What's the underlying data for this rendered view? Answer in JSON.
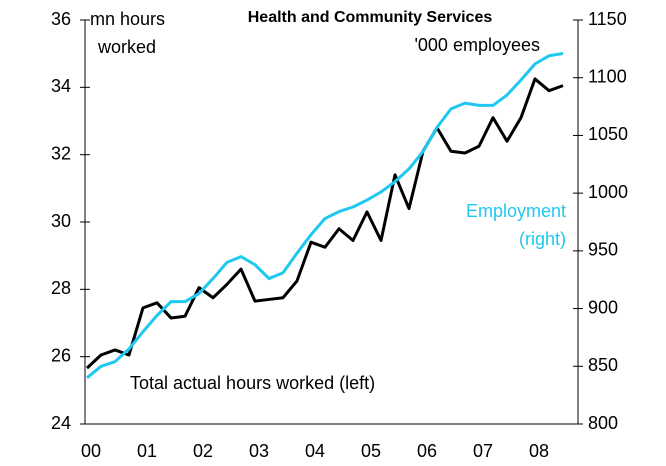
{
  "chart_data": {
    "type": "line",
    "title": "Health and Community Services",
    "y_label": [
      "mn hours",
      "worked"
    ],
    "y2_label": "'000 employees",
    "annotations": [
      [
        "Employment",
        "(right)"
      ],
      [
        "Total actual hours worked (left)"
      ]
    ],
    "categories": [
      "00",
      null,
      null,
      null,
      "01",
      null,
      null,
      null,
      "02",
      null,
      null,
      null,
      "03",
      null,
      null,
      null,
      "04",
      null,
      null,
      null,
      "05",
      null,
      null,
      null,
      "06",
      null,
      null,
      null,
      "07",
      null,
      null,
      null,
      "08",
      null,
      null
    ],
    "series": [
      {
        "name": "Total actual hours worked (left)",
        "color": "#000000",
        "axis": "y",
        "values": [
          25.66,
          26.05,
          26.2,
          26.05,
          27.45,
          27.6,
          27.15,
          27.2,
          28.05,
          27.75,
          28.15,
          28.6,
          27.65,
          27.7,
          27.75,
          28.25,
          29.4,
          29.25,
          29.8,
          29.45,
          30.3,
          29.45,
          31.4,
          30.4,
          32.1,
          32.8,
          32.1,
          32.05,
          32.25,
          33.1,
          32.4,
          33.1,
          34.25,
          33.9,
          34.05
        ]
      },
      {
        "name": "Employment (right)",
        "color": "#1fc8f0",
        "axis": "y2",
        "values": [
          840,
          850,
          854,
          865,
          880,
          894,
          906,
          906,
          913,
          926,
          940,
          945,
          938,
          926,
          931,
          948,
          964,
          978,
          984,
          988,
          994,
          1001,
          1010,
          1021,
          1036,
          1057,
          1073,
          1078,
          1076,
          1076,
          1085,
          1098,
          1112,
          1119,
          1121
        ]
      }
    ],
    "ylim": [
      24,
      36
    ],
    "yticks": [
      24,
      26,
      28,
      30,
      32,
      34,
      36
    ],
    "y2lim": [
      800,
      1150
    ],
    "y2ticks": [
      800,
      850,
      900,
      950,
      1000,
      1050,
      1100,
      1150
    ]
  }
}
